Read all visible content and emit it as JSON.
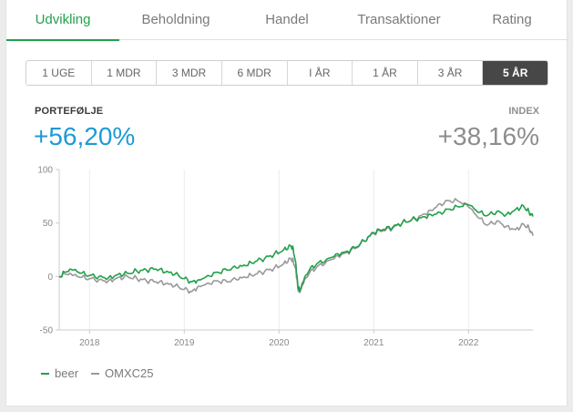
{
  "tabs": [
    {
      "label": "Udvikling",
      "active": true
    },
    {
      "label": "Beholdning",
      "active": false
    },
    {
      "label": "Handel",
      "active": false
    },
    {
      "label": "Transaktioner",
      "active": false
    },
    {
      "label": "Rating",
      "active": false
    }
  ],
  "periods": [
    {
      "label": "1 UGE",
      "active": false
    },
    {
      "label": "1 MDR",
      "active": false
    },
    {
      "label": "3 MDR",
      "active": false
    },
    {
      "label": "6 MDR",
      "active": false
    },
    {
      "label": "I ÅR",
      "active": false
    },
    {
      "label": "1 ÅR",
      "active": false
    },
    {
      "label": "3 ÅR",
      "active": false
    },
    {
      "label": "5 ÅR",
      "active": true
    }
  ],
  "summary": {
    "portfolio_label": "PORTEFØLJE",
    "portfolio_value": "+56,20%",
    "index_label": "INDEX",
    "index_value": "+38,16%"
  },
  "colors": {
    "accent": "#22a04b",
    "portfolio_value": "#1e9ad6",
    "index": "#999999"
  },
  "chart_data": {
    "type": "line",
    "ylim": [
      -50,
      100
    ],
    "yticks": [
      100,
      50,
      0,
      -50
    ],
    "xlim": [
      2017.68,
      2022.68
    ],
    "xticks": [
      {
        "value": 2018,
        "label": "2018"
      },
      {
        "value": 2019,
        "label": "2019"
      },
      {
        "value": 2020,
        "label": "2020"
      },
      {
        "value": 2021,
        "label": "2021"
      },
      {
        "value": 2022,
        "label": "2022"
      }
    ],
    "grid": "x",
    "legend": "bottom-left",
    "series": [
      {
        "name": "beer",
        "color": "#22a04b",
        "points": [
          [
            2017.68,
            0
          ],
          [
            2017.75,
            4
          ],
          [
            2017.82,
            6
          ],
          [
            2017.9,
            3
          ],
          [
            2018.0,
            1
          ],
          [
            2018.1,
            0
          ],
          [
            2018.2,
            -1
          ],
          [
            2018.3,
            2
          ],
          [
            2018.4,
            3
          ],
          [
            2018.5,
            5
          ],
          [
            2018.6,
            6
          ],
          [
            2018.7,
            7
          ],
          [
            2018.8,
            4
          ],
          [
            2018.9,
            2
          ],
          [
            2019.0,
            -2
          ],
          [
            2019.08,
            -5
          ],
          [
            2019.15,
            -3
          ],
          [
            2019.25,
            1
          ],
          [
            2019.35,
            4
          ],
          [
            2019.45,
            6
          ],
          [
            2019.55,
            8
          ],
          [
            2019.65,
            10
          ],
          [
            2019.75,
            14
          ],
          [
            2019.85,
            17
          ],
          [
            2019.95,
            21
          ],
          [
            2020.05,
            25
          ],
          [
            2020.12,
            29
          ],
          [
            2020.15,
            26
          ],
          [
            2020.18,
            10
          ],
          [
            2020.2,
            -10
          ],
          [
            2020.22,
            -14
          ],
          [
            2020.26,
            -4
          ],
          [
            2020.32,
            6
          ],
          [
            2020.4,
            12
          ],
          [
            2020.5,
            16
          ],
          [
            2020.6,
            21
          ],
          [
            2020.7,
            23
          ],
          [
            2020.8,
            27
          ],
          [
            2020.9,
            33
          ],
          [
            2021.0,
            41
          ],
          [
            2021.1,
            44
          ],
          [
            2021.2,
            46
          ],
          [
            2021.3,
            50
          ],
          [
            2021.4,
            53
          ],
          [
            2021.5,
            55
          ],
          [
            2021.6,
            58
          ],
          [
            2021.7,
            60
          ],
          [
            2021.8,
            63
          ],
          [
            2021.9,
            65
          ],
          [
            2022.0,
            67
          ],
          [
            2022.1,
            60
          ],
          [
            2022.2,
            57
          ],
          [
            2022.3,
            61
          ],
          [
            2022.4,
            58
          ],
          [
            2022.5,
            63
          ],
          [
            2022.58,
            66
          ],
          [
            2022.64,
            60
          ],
          [
            2022.68,
            56
          ]
        ]
      },
      {
        "name": "OMXC25",
        "color": "#999999",
        "points": [
          [
            2017.68,
            0
          ],
          [
            2017.75,
            2
          ],
          [
            2017.82,
            1
          ],
          [
            2017.9,
            -1
          ],
          [
            2018.0,
            -2
          ],
          [
            2018.1,
            -3
          ],
          [
            2018.2,
            -4
          ],
          [
            2018.3,
            -1
          ],
          [
            2018.4,
            0
          ],
          [
            2018.5,
            -2
          ],
          [
            2018.6,
            -4
          ],
          [
            2018.7,
            -5
          ],
          [
            2018.8,
            -7
          ],
          [
            2018.9,
            -9
          ],
          [
            2019.0,
            -12
          ],
          [
            2019.08,
            -14
          ],
          [
            2019.15,
            -9
          ],
          [
            2019.25,
            -6
          ],
          [
            2019.35,
            -4
          ],
          [
            2019.45,
            -5
          ],
          [
            2019.55,
            -3
          ],
          [
            2019.65,
            -1
          ],
          [
            2019.75,
            2
          ],
          [
            2019.85,
            5
          ],
          [
            2019.95,
            8
          ],
          [
            2020.05,
            12
          ],
          [
            2020.12,
            17
          ],
          [
            2020.15,
            15
          ],
          [
            2020.18,
            5
          ],
          [
            2020.2,
            -12
          ],
          [
            2020.22,
            -15
          ],
          [
            2020.26,
            -6
          ],
          [
            2020.32,
            3
          ],
          [
            2020.4,
            9
          ],
          [
            2020.5,
            14
          ],
          [
            2020.6,
            19
          ],
          [
            2020.7,
            22
          ],
          [
            2020.8,
            26
          ],
          [
            2020.9,
            33
          ],
          [
            2021.0,
            40
          ],
          [
            2021.1,
            43
          ],
          [
            2021.2,
            45
          ],
          [
            2021.3,
            50
          ],
          [
            2021.4,
            53
          ],
          [
            2021.5,
            57
          ],
          [
            2021.6,
            62
          ],
          [
            2021.7,
            68
          ],
          [
            2021.8,
            71
          ],
          [
            2021.9,
            70
          ],
          [
            2022.0,
            65
          ],
          [
            2022.1,
            55
          ],
          [
            2022.2,
            48
          ],
          [
            2022.3,
            52
          ],
          [
            2022.4,
            47
          ],
          [
            2022.5,
            44
          ],
          [
            2022.58,
            49
          ],
          [
            2022.64,
            45
          ],
          [
            2022.68,
            38
          ]
        ]
      }
    ]
  }
}
